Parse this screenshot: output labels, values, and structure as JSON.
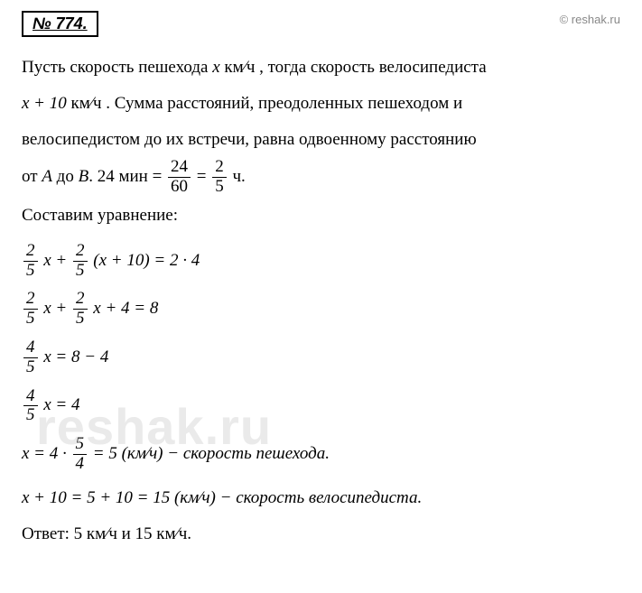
{
  "problem_number": "№ 774.",
  "copyright": "© reshak.ru",
  "watermark": "reshak.ru",
  "intro": {
    "line1_pre": "Пусть скорость пешехода ",
    "line1_var": "x",
    "line1_mid": "  км⁄ч , тогда скорость велосипедиста",
    "line2_var": "x + 10",
    "line2_mid": "  км⁄ч . Сумма расстояний, преодоленных пешеходом и",
    "line3": "велосипедистом до их встречи, равна одвоенному расстоянию",
    "line4_pre": "от ",
    "line4_A": "A",
    "line4_mid1": " до ",
    "line4_B": "B",
    "line4_mid2": ".    24 мин = ",
    "frac1_num": "24",
    "frac1_den": "60",
    "line4_eq": " = ",
    "frac2_num": "2",
    "frac2_den": "5",
    "line4_end": " ч."
  },
  "setup": "Составим уравнение:",
  "eq1": {
    "f1_num": "2",
    "f1_den": "5",
    "mid1": " x + ",
    "f2_num": "2",
    "f2_den": "5",
    "mid2": " (x + 10) = 2 · 4"
  },
  "eq2": {
    "f1_num": "2",
    "f1_den": "5",
    "mid1": " x + ",
    "f2_num": "2",
    "f2_den": "5",
    "mid2": " x + 4 = 8"
  },
  "eq3": {
    "f1_num": "4",
    "f1_den": "5",
    "rest": " x = 8 − 4"
  },
  "eq4": {
    "f1_num": "4",
    "f1_den": "5",
    "rest": " x = 4"
  },
  "eq5": {
    "pre": "x = 4 · ",
    "f1_num": "5",
    "f1_den": "4",
    "rest": " = 5 (км⁄ч) − скорость пешехода."
  },
  "eq6": "x + 10 = 5 + 10 = 15 (км⁄ч) − скорость велосипедиста.",
  "answer": "Ответ: 5  км⁄ч  и  15  км⁄ч."
}
